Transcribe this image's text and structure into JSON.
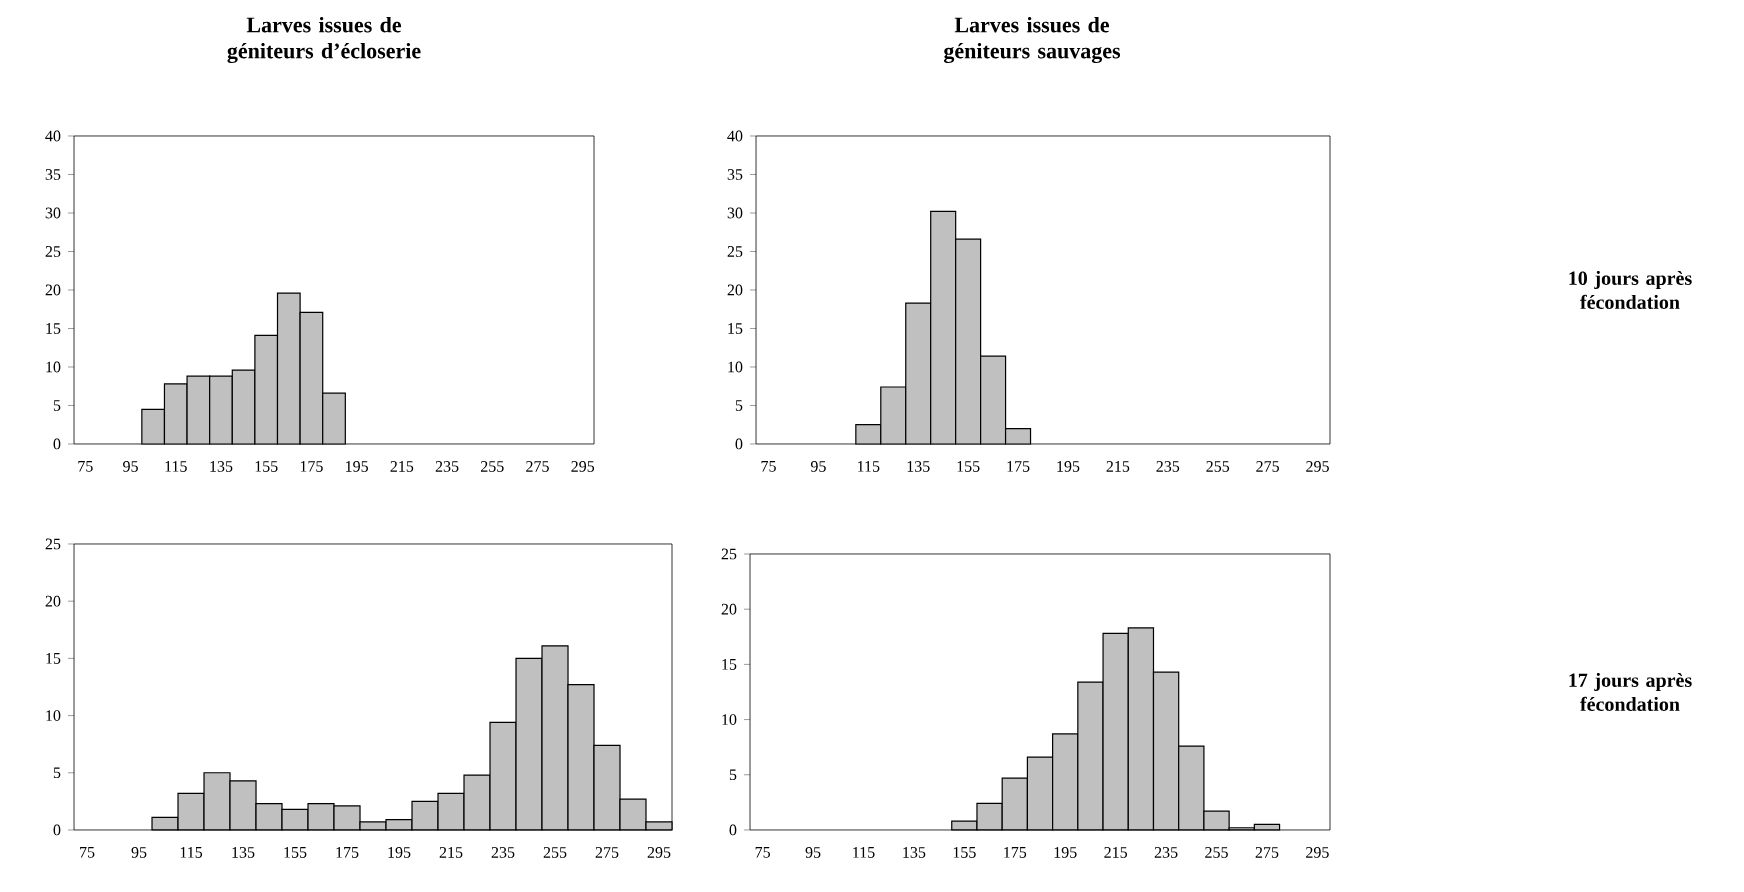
{
  "chart_data": [
    {
      "type": "histogram",
      "title": "Larves issues de géniteurs d’écloserie",
      "color": "#c0c0c0",
      "bins": [
        70,
        80,
        90,
        100,
        110,
        120,
        130,
        140,
        150,
        160,
        170,
        180,
        190,
        200,
        210,
        220,
        230,
        240,
        250,
        260,
        270,
        280,
        290,
        300
      ],
      "values": [
        0,
        0,
        0,
        4.5,
        7.8,
        8.8,
        8.8,
        9.6,
        14.1,
        19.6,
        17.1,
        6.6,
        0,
        0,
        0,
        0,
        0,
        0,
        0,
        0,
        0,
        0,
        0
      ],
      "xlim": [
        70,
        300
      ],
      "ylim": [
        0,
        40
      ],
      "xticks": [
        75,
        95,
        115,
        135,
        155,
        175,
        195,
        215,
        235,
        255,
        275,
        295
      ],
      "yticks": [
        0,
        5,
        10,
        15,
        20,
        25,
        30,
        35,
        40
      ]
    },
    {
      "type": "histogram",
      "title": "Larves issues de géniteurs sauvages",
      "color": "#c0c0c0",
      "bins": [
        70,
        80,
        90,
        100,
        110,
        120,
        130,
        140,
        150,
        160,
        170,
        180,
        190,
        200,
        210,
        220,
        230,
        240,
        250,
        260,
        270,
        280,
        290,
        300
      ],
      "values": [
        0,
        0,
        0,
        0,
        2.5,
        7.4,
        18.3,
        30.2,
        26.6,
        11.4,
        2.0,
        0,
        0,
        0,
        0,
        0,
        0,
        0,
        0,
        0,
        0,
        0,
        0
      ],
      "xlim": [
        70,
        300
      ],
      "ylim": [
        0,
        40
      ],
      "xticks": [
        75,
        95,
        115,
        135,
        155,
        175,
        195,
        215,
        235,
        255,
        275,
        295
      ],
      "yticks": [
        0,
        5,
        10,
        15,
        20,
        25,
        30,
        35,
        40
      ],
      "annotations": [
        "10 jours après fécondation"
      ]
    },
    {
      "type": "histogram",
      "color": "#c0c0c0",
      "bins": [
        70,
        80,
        90,
        100,
        110,
        120,
        130,
        140,
        150,
        160,
        170,
        180,
        190,
        200,
        210,
        220,
        230,
        240,
        250,
        260,
        270,
        280,
        290,
        300
      ],
      "values": [
        0,
        0,
        0,
        1.1,
        3.2,
        5.0,
        4.3,
        2.3,
        1.8,
        2.3,
        2.1,
        0.7,
        0.9,
        2.5,
        3.2,
        4.8,
        9.4,
        15.0,
        16.1,
        12.7,
        7.4,
        2.7,
        0.7
      ],
      "xlim": [
        70,
        300
      ],
      "ylim": [
        0,
        25
      ],
      "xticks": [
        75,
        95,
        115,
        135,
        155,
        175,
        195,
        215,
        235,
        255,
        275,
        295
      ],
      "yticks": [
        0,
        5,
        10,
        15,
        20,
        25
      ]
    },
    {
      "type": "histogram",
      "color": "#c0c0c0",
      "bins": [
        70,
        80,
        90,
        100,
        110,
        120,
        130,
        140,
        150,
        160,
        170,
        180,
        190,
        200,
        210,
        220,
        230,
        240,
        250,
        260,
        270,
        280,
        290,
        300
      ],
      "values": [
        0,
        0,
        0,
        0,
        0,
        0,
        0,
        0,
        0.8,
        2.4,
        4.7,
        6.6,
        8.7,
        13.4,
        17.8,
        18.3,
        14.3,
        7.6,
        1.7,
        0.2,
        0.5,
        0,
        0
      ],
      "xlim": [
        70,
        300
      ],
      "ylim": [
        0,
        25
      ],
      "xticks": [
        75,
        95,
        115,
        135,
        155,
        175,
        195,
        215,
        235,
        255,
        275,
        295
      ],
      "yticks": [
        0,
        5,
        10,
        15,
        20,
        25
      ],
      "annotations": [
        "17 jours après fécondation"
      ]
    }
  ]
}
